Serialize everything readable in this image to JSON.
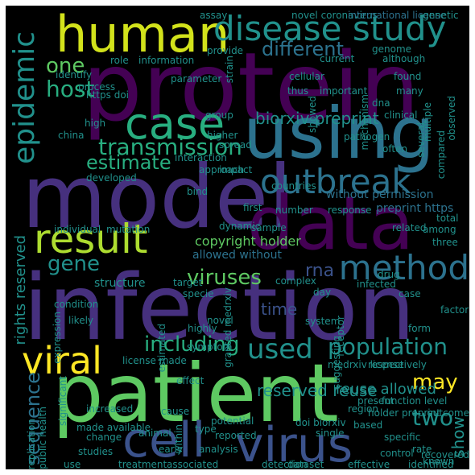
{
  "palette": {
    "background": "#000000",
    "frame": "#ffffff",
    "purple_dark": "#440154",
    "purple": "#46307e",
    "indigo": "#3b528b",
    "blue": "#2c728e",
    "teal": "#21918c",
    "green_teal": "#28ae80",
    "green": "#5ec962",
    "lime": "#addc30",
    "yellow": "#fde725"
  },
  "words": [
    {
      "text": "protein",
      "color": "#440154"
    },
    {
      "text": "infection",
      "color": "#46307e"
    },
    {
      "text": "model",
      "color": "#46307e"
    },
    {
      "text": "data",
      "color": "#440154"
    },
    {
      "text": "patient",
      "color": "#5ec962"
    },
    {
      "text": "using",
      "color": "#2c728e"
    },
    {
      "text": "human",
      "color": "#d2e21b"
    },
    {
      "text": "disease study",
      "color": "#21918c"
    },
    {
      "text": "case",
      "color": "#28ae80"
    },
    {
      "text": "outbreak",
      "color": "#2c728e"
    },
    {
      "text": "result",
      "color": "#addc30"
    },
    {
      "text": "method",
      "color": "#2c728e"
    },
    {
      "text": "viral",
      "color": "#fde725"
    },
    {
      "text": "virus",
      "color": "#3b528b"
    },
    {
      "text": "cell",
      "color": "#3b528b"
    },
    {
      "text": "epidemic",
      "color": "#21918c"
    },
    {
      "text": "transmission",
      "color": "#28ae80"
    },
    {
      "text": "used",
      "color": "#21918c"
    },
    {
      "text": "population",
      "color": "#21918c"
    },
    {
      "text": "including",
      "color": "#28ae80"
    },
    {
      "text": "estimate",
      "color": "#28ae80"
    },
    {
      "text": "viruses",
      "color": "#5ec962"
    },
    {
      "text": "gene",
      "color": "#21918c"
    },
    {
      "text": "host",
      "color": "#28ae80"
    },
    {
      "text": "one",
      "color": "#5ec962"
    },
    {
      "text": "different",
      "color": "#2c728e"
    },
    {
      "text": "sequence",
      "color": "#2c728e"
    },
    {
      "text": "may",
      "color": "#fde725"
    },
    {
      "text": "two",
      "color": "#21918c"
    },
    {
      "text": "time",
      "color": "#3b528b"
    },
    {
      "text": "rna",
      "color": "#3b528b"
    },
    {
      "text": "biorxiv preprint",
      "color": "#21918c"
    },
    {
      "text": "reserved reuse",
      "color": "#21918c"
    },
    {
      "text": "reuse allowed",
      "color": "#21918c"
    },
    {
      "text": "show",
      "color": "#21918c"
    },
    {
      "text": "rights reserved",
      "color": "#21918c"
    },
    {
      "text": "copyright holder",
      "color": "#5ec962"
    },
    {
      "text": "allowed without",
      "color": "#2c728e"
    },
    {
      "text": "preprint https",
      "color": "#2c728e"
    },
    {
      "text": "without permission",
      "color": "#2c728e"
    },
    {
      "text": "structure",
      "color": "#21918c"
    },
    {
      "text": "novel coronavirus",
      "color": "#21918c"
    },
    {
      "text": "international license",
      "color": "#2c728e"
    },
    {
      "text": "https doi",
      "color": "#21918c"
    },
    {
      "text": "license made",
      "color": "#21918c"
    },
    {
      "text": "made available",
      "color": "#21918c"
    },
    {
      "text": "doi biorxiv",
      "color": "#21918c"
    },
    {
      "text": "analysis",
      "color": "#21918c"
    },
    {
      "text": "detection",
      "color": "#21918c"
    },
    {
      "text": "identified",
      "color": "#21918c"
    },
    {
      "text": "associated",
      "color": "#21918c"
    },
    {
      "text": "effective",
      "color": "#21918c"
    },
    {
      "text": "control",
      "color": "#21918c"
    },
    {
      "text": "specific",
      "color": "#21918c"
    },
    {
      "text": "reported",
      "color": "#21918c"
    },
    {
      "text": "treatment",
      "color": "#21918c"
    },
    {
      "text": "studies",
      "color": "#21918c"
    },
    {
      "text": "effect",
      "color": "#21918c"
    },
    {
      "text": "target",
      "color": "#21918c"
    },
    {
      "text": "complex",
      "color": "#21918c"
    },
    {
      "text": "system",
      "color": "#21918c"
    },
    {
      "text": "receptor",
      "color": "#21918c"
    },
    {
      "text": "drug",
      "color": "#21918c"
    },
    {
      "text": "three",
      "color": "#21918c"
    },
    {
      "text": "among",
      "color": "#21918c"
    },
    {
      "text": "sample",
      "color": "#21918c"
    },
    {
      "text": "dynamic",
      "color": "#21918c"
    },
    {
      "text": "mutation",
      "color": "#21918c"
    },
    {
      "text": "individual",
      "color": "#21918c"
    },
    {
      "text": "response",
      "color": "#21918c"
    },
    {
      "text": "first",
      "color": "#21918c"
    },
    {
      "text": "number",
      "color": "#21918c"
    },
    {
      "text": "interaction",
      "color": "#21918c"
    },
    {
      "text": "approach",
      "color": "#21918c"
    },
    {
      "text": "developed",
      "color": "#21918c"
    },
    {
      "text": "higher",
      "color": "#21918c"
    },
    {
      "text": "china",
      "color": "#21918c"
    },
    {
      "text": "high",
      "color": "#21918c"
    },
    {
      "text": "spread",
      "color": "#21918c"
    },
    {
      "text": "pathogen",
      "color": "#21918c"
    },
    {
      "text": "important",
      "color": "#21918c"
    },
    {
      "text": "genome",
      "color": "#21918c"
    },
    {
      "text": "found",
      "color": "#21918c"
    },
    {
      "text": "showed",
      "color": "#21918c"
    },
    {
      "text": "provide",
      "color": "#21918c"
    },
    {
      "text": "identify",
      "color": "#21918c"
    },
    {
      "text": "role",
      "color": "#21918c"
    },
    {
      "text": "information",
      "color": "#21918c"
    },
    {
      "text": "group",
      "color": "#21918c"
    },
    {
      "text": "strain",
      "color": "#21918c"
    },
    {
      "text": "dna",
      "color": "#21918c"
    },
    {
      "text": "many",
      "color": "#21918c"
    },
    {
      "text": "several",
      "color": "#21918c"
    },
    {
      "text": "compared",
      "color": "#21918c"
    },
    {
      "text": "granted medrxiv",
      "color": "#21918c"
    },
    {
      "text": "medrxiv license",
      "color": "#21918c"
    },
    {
      "text": "holder preprint",
      "color": "#21918c"
    },
    {
      "text": "function level",
      "color": "#21918c"
    },
    {
      "text": "region",
      "color": "#21918c"
    },
    {
      "text": "based",
      "color": "#21918c"
    },
    {
      "text": "rate",
      "color": "#21918c"
    },
    {
      "text": "present",
      "color": "#21918c"
    },
    {
      "text": "potential",
      "color": "#21918c"
    },
    {
      "text": "change",
      "color": "#21918c"
    },
    {
      "text": "increased",
      "color": "#21918c"
    },
    {
      "text": "infected",
      "color": "#21918c"
    },
    {
      "text": "novel",
      "color": "#21918c"
    },
    {
      "text": "highly",
      "color": "#21918c"
    },
    {
      "text": "day",
      "color": "#21918c"
    },
    {
      "text": "specie",
      "color": "#21918c"
    },
    {
      "text": "expression",
      "color": "#21918c"
    },
    {
      "text": "significant",
      "color": "#21918c"
    },
    {
      "text": "public health",
      "color": "#21918c"
    },
    {
      "text": "replication",
      "color": "#21918c"
    },
    {
      "text": "likely",
      "color": "#21918c"
    },
    {
      "text": "within",
      "color": "#21918c"
    },
    {
      "text": "type",
      "color": "#21918c"
    },
    {
      "text": "cause",
      "color": "#21918c"
    },
    {
      "text": "use",
      "color": "#21918c"
    },
    {
      "text": "assay",
      "color": "#21918c"
    },
    {
      "text": "related",
      "color": "#21918c"
    },
    {
      "text": "total",
      "color": "#21918c"
    },
    {
      "text": "impact",
      "color": "#21918c"
    },
    {
      "text": "estimated",
      "color": "#21918c"
    },
    {
      "text": "respectively",
      "color": "#21918c"
    },
    {
      "text": "form",
      "color": "#21918c"
    },
    {
      "text": "single",
      "color": "#21918c"
    },
    {
      "text": "animal",
      "color": "#21918c"
    },
    {
      "text": "mechanism",
      "color": "#21918c"
    },
    {
      "text": "observed",
      "color": "#21918c"
    },
    {
      "text": "multiple",
      "color": "#21918c"
    },
    {
      "text": "current",
      "color": "#21918c"
    },
    {
      "text": "symptom",
      "color": "#21918c"
    },
    {
      "text": "suggesting",
      "color": "#21918c"
    },
    {
      "text": "early",
      "color": "#21918c"
    },
    {
      "text": "dataset",
      "color": "#21918c"
    },
    {
      "text": "case",
      "color": "#21918c"
    },
    {
      "text": "countries",
      "color": "#21918c"
    },
    {
      "text": "parameter",
      "color": "#21918c"
    },
    {
      "text": "clinical",
      "color": "#21918c"
    },
    {
      "text": "often",
      "color": "#21918c"
    },
    {
      "text": "thus",
      "color": "#21918c"
    },
    {
      "text": "although",
      "color": "#21918c"
    },
    {
      "text": "genetic",
      "color": "#21918c"
    },
    {
      "text": "condition",
      "color": "#21918c"
    },
    {
      "text": "process",
      "color": "#21918c"
    },
    {
      "text": "outcome",
      "color": "#21918c"
    },
    {
      "text": "recovered",
      "color": "#21918c"
    },
    {
      "text": "known",
      "color": "#21918c"
    },
    {
      "text": "bind",
      "color": "#21918c"
    },
    {
      "text": "cellular",
      "color": "#21918c"
    },
    {
      "text": "factor",
      "color": "#21918c"
    }
  ]
}
